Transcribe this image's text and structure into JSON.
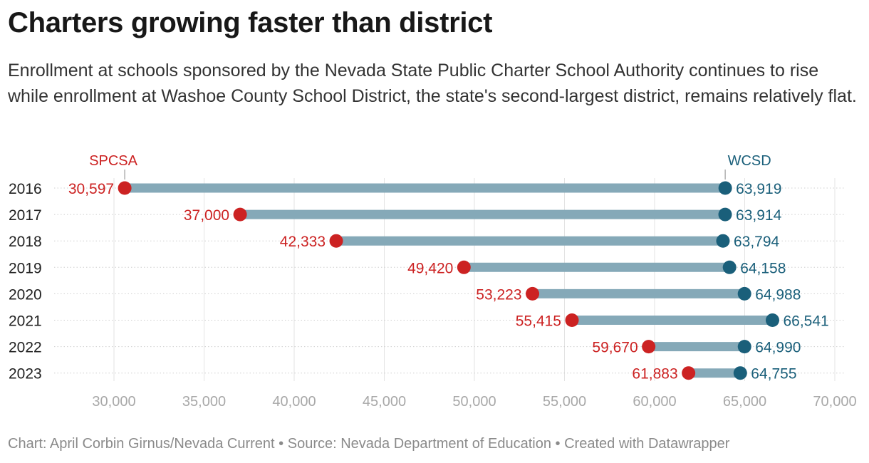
{
  "header": {
    "title": "Charters growing faster than district",
    "subtitle": "Enrollment at schools sponsored by the Nevada State Public Charter School Authority continues to rise while enrollment at Washoe County School District, the state's second-largest district, remains relatively flat."
  },
  "footer": {
    "chart_credit": "Chart: April Corbin Girnus/Nevada Current",
    "source": "Source: Nevada Department of Education",
    "tool": "Created with Datawrapper",
    "separator": "•"
  },
  "chart_data": {
    "type": "dot-range",
    "title": "Charters growing faster than district",
    "categories": [
      "2016",
      "2017",
      "2018",
      "2019",
      "2020",
      "2021",
      "2022",
      "2023"
    ],
    "series": [
      {
        "name": "SPCSA",
        "color": "#cc2222",
        "values": [
          30597,
          37000,
          42333,
          49420,
          53223,
          55415,
          59670,
          61883
        ]
      },
      {
        "name": "WCSD",
        "color": "#1a5f7a",
        "values": [
          63919,
          63914,
          63794,
          64158,
          64988,
          66541,
          64990,
          64755
        ]
      }
    ],
    "range_bar_color": "#85a9b8",
    "x_ticks": [
      30000,
      35000,
      40000,
      45000,
      50000,
      55000,
      60000,
      65000,
      70000
    ],
    "x_tick_labels": [
      "30,000",
      "35,000",
      "40,000",
      "45,000",
      "50,000",
      "55,000",
      "60,000",
      "65,000",
      "70,000"
    ],
    "xlim": [
      30000,
      70000
    ],
    "grid": true,
    "legend": "direct labels above the first row"
  }
}
